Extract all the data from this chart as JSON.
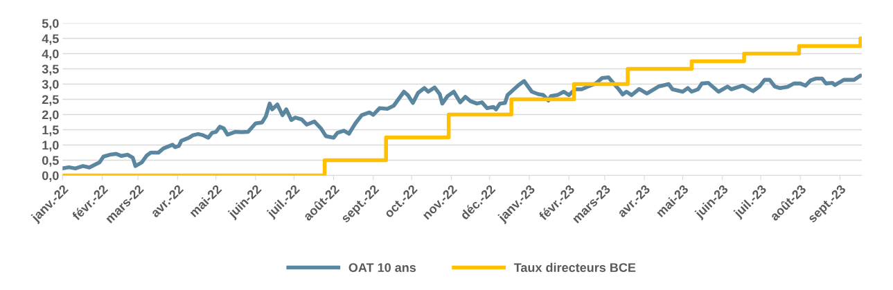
{
  "chart_data": {
    "type": "line",
    "xlim": [
      "2022-01-01",
      "2023-09-18"
    ],
    "xticks": [
      {
        "value": "2022-01-01",
        "label": "janv.-22"
      },
      {
        "value": "2022-02-01",
        "label": "févr.-22"
      },
      {
        "value": "2022-03-01",
        "label": "mars-22"
      },
      {
        "value": "2022-04-01",
        "label": "avr.-22"
      },
      {
        "value": "2022-05-01",
        "label": "mai-22"
      },
      {
        "value": "2022-06-01",
        "label": "juin-22"
      },
      {
        "value": "2022-07-01",
        "label": "juil.-22"
      },
      {
        "value": "2022-08-01",
        "label": "août-22"
      },
      {
        "value": "2022-09-01",
        "label": "sept.-22"
      },
      {
        "value": "2022-10-01",
        "label": "oct.-22"
      },
      {
        "value": "2022-11-01",
        "label": "nov.-22"
      },
      {
        "value": "2022-12-01",
        "label": "déc.-22"
      },
      {
        "value": "2023-01-01",
        "label": "janv.-23"
      },
      {
        "value": "2023-02-01",
        "label": "févr.-23"
      },
      {
        "value": "2023-03-01",
        "label": "mars-23"
      },
      {
        "value": "2023-04-01",
        "label": "avr.-23"
      },
      {
        "value": "2023-05-01",
        "label": "mai-23"
      },
      {
        "value": "2023-06-01",
        "label": "juin-23"
      },
      {
        "value": "2023-07-01",
        "label": "juil.-23"
      },
      {
        "value": "2023-08-01",
        "label": "août-23"
      },
      {
        "value": "2023-09-01",
        "label": "sept.-23"
      }
    ],
    "ylim": [
      0,
      5
    ],
    "yticks": [
      {
        "value": 0,
        "label": "0,0"
      },
      {
        "value": 0.5,
        "label": "0,5"
      },
      {
        "value": 1,
        "label": "1,0"
      },
      {
        "value": 1.5,
        "label": "1,5"
      },
      {
        "value": 2,
        "label": "2,0"
      },
      {
        "value": 2.5,
        "label": "2,5"
      },
      {
        "value": 3,
        "label": "3,0"
      },
      {
        "value": 3.5,
        "label": "3,5"
      },
      {
        "value": 4,
        "label": "4,0"
      },
      {
        "value": 4.5,
        "label": "4,5"
      },
      {
        "value": 5,
        "label": "5,0"
      }
    ],
    "grid": "y",
    "legend": "bottom",
    "marker": "none",
    "line_style": "solid",
    "series": [
      {
        "name": "OAT 10 ans",
        "color": "#5b86a0",
        "x": [
          "2022-01-01",
          "2022-01-06",
          "2022-01-11",
          "2022-01-17",
          "2022-01-22",
          "2022-01-30",
          "2022-02-02",
          "2022-02-07",
          "2022-02-12",
          "2022-02-16",
          "2022-02-21",
          "2022-02-25",
          "2022-02-27",
          "2022-03-04",
          "2022-03-08",
          "2022-03-11",
          "2022-03-17",
          "2022-03-21",
          "2022-03-28",
          "2022-03-30",
          "2022-04-02",
          "2022-04-04",
          "2022-04-10",
          "2022-04-13",
          "2022-04-17",
          "2022-04-21",
          "2022-04-25",
          "2022-04-28",
          "2022-05-01",
          "2022-05-04",
          "2022-05-07",
          "2022-05-10",
          "2022-05-16",
          "2022-05-21",
          "2022-05-26",
          "2022-06-01",
          "2022-06-06",
          "2022-06-09",
          "2022-06-12",
          "2022-06-14",
          "2022-06-18",
          "2022-06-22",
          "2022-06-25",
          "2022-06-29",
          "2022-07-02",
          "2022-07-07",
          "2022-07-11",
          "2022-07-17",
          "2022-07-22",
          "2022-07-26",
          "2022-08-01",
          "2022-08-04",
          "2022-08-09",
          "2022-08-13",
          "2022-08-18",
          "2022-08-23",
          "2022-08-29",
          "2022-09-01",
          "2022-09-06",
          "2022-09-12",
          "2022-09-17",
          "2022-09-25",
          "2022-09-28",
          "2022-10-02",
          "2022-10-06",
          "2022-10-11",
          "2022-10-14",
          "2022-10-19",
          "2022-10-23",
          "2022-10-25",
          "2022-10-29",
          "2022-11-03",
          "2022-11-08",
          "2022-11-12",
          "2022-11-16",
          "2022-11-21",
          "2022-11-25",
          "2022-11-29",
          "2022-12-04",
          "2022-12-06",
          "2022-12-09",
          "2022-12-13",
          "2022-12-15",
          "2022-12-20",
          "2022-12-24",
          "2022-12-28",
          "2022-12-30",
          "2023-01-03",
          "2023-01-08",
          "2023-01-12",
          "2023-01-16",
          "2023-01-18",
          "2023-01-23",
          "2023-01-28",
          "2023-02-01",
          "2023-02-06",
          "2023-02-11",
          "2023-02-16",
          "2023-02-22",
          "2023-02-27",
          "2023-03-04",
          "2023-03-08",
          "2023-03-12",
          "2023-03-15",
          "2023-03-18",
          "2023-03-22",
          "2023-03-28",
          "2023-04-03",
          "2023-04-12",
          "2023-04-20",
          "2023-04-23",
          "2023-05-01",
          "2023-05-05",
          "2023-05-08",
          "2023-05-13",
          "2023-05-16",
          "2023-05-21",
          "2023-05-29",
          "2023-06-05",
          "2023-06-08",
          "2023-06-17",
          "2023-06-25",
          "2023-06-30",
          "2023-07-04",
          "2023-07-08",
          "2023-07-12",
          "2023-07-16",
          "2023-07-22",
          "2023-07-27",
          "2023-08-01",
          "2023-08-05",
          "2023-08-09",
          "2023-08-13",
          "2023-08-18",
          "2023-08-21",
          "2023-08-26",
          "2023-08-28",
          "2023-09-04",
          "2023-09-12",
          "2023-09-17"
        ],
        "values": [
          0.23,
          0.27,
          0.23,
          0.31,
          0.26,
          0.43,
          0.62,
          0.68,
          0.71,
          0.64,
          0.68,
          0.58,
          0.31,
          0.43,
          0.66,
          0.75,
          0.75,
          0.89,
          1.01,
          0.93,
          0.97,
          1.14,
          1.24,
          1.32,
          1.36,
          1.32,
          1.24,
          1.4,
          1.43,
          1.6,
          1.55,
          1.34,
          1.43,
          1.42,
          1.43,
          1.71,
          1.74,
          1.94,
          2.36,
          2.17,
          2.33,
          1.98,
          2.17,
          1.82,
          1.9,
          1.84,
          1.67,
          1.77,
          1.55,
          1.29,
          1.24,
          1.4,
          1.47,
          1.37,
          1.71,
          1.98,
          2.07,
          1.99,
          2.21,
          2.19,
          2.29,
          2.75,
          2.64,
          2.38,
          2.71,
          2.87,
          2.75,
          2.89,
          2.67,
          2.36,
          2.6,
          2.75,
          2.4,
          2.58,
          2.44,
          2.36,
          2.4,
          2.21,
          2.25,
          2.17,
          2.36,
          2.38,
          2.64,
          2.83,
          2.98,
          3.1,
          2.98,
          2.75,
          2.67,
          2.64,
          2.46,
          2.61,
          2.64,
          2.75,
          2.64,
          2.83,
          2.83,
          2.92,
          3.02,
          3.2,
          3.22,
          3.02,
          2.83,
          2.66,
          2.75,
          2.64,
          2.84,
          2.69,
          2.92,
          3.0,
          2.83,
          2.75,
          2.87,
          2.75,
          2.83,
          3.02,
          3.04,
          2.75,
          2.92,
          2.83,
          2.95,
          2.77,
          2.92,
          3.14,
          3.14,
          2.92,
          2.87,
          2.91,
          3.02,
          3.02,
          2.95,
          3.12,
          3.18,
          3.18,
          3.02,
          3.04,
          2.97,
          3.14,
          3.14,
          3.28
        ]
      },
      {
        "name": "Taux directeurs BCE",
        "color": "#ffc000",
        "type": "step",
        "x": [
          "2022-01-01",
          "2022-07-25",
          "2022-09-11",
          "2022-10-30",
          "2022-12-18",
          "2023-02-05",
          "2023-03-19",
          "2023-05-08",
          "2023-06-18",
          "2023-07-31",
          "2023-09-17",
          "2023-09-18"
        ],
        "values": [
          0,
          0.5,
          1.25,
          2.0,
          2.5,
          3.0,
          3.5,
          3.75,
          4.0,
          4.25,
          4.5,
          4.5
        ]
      }
    ]
  }
}
